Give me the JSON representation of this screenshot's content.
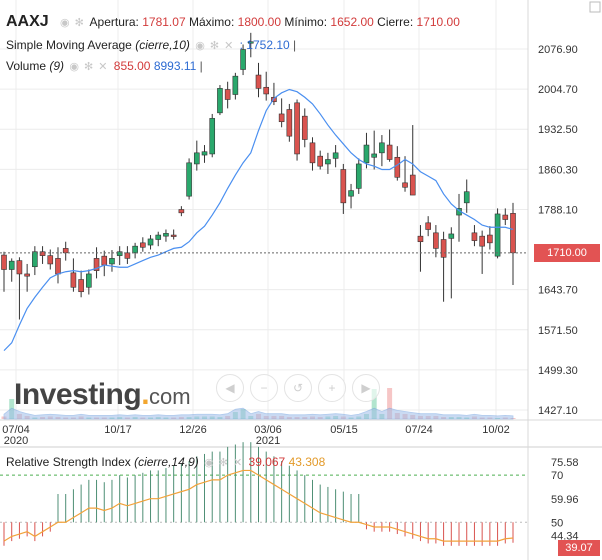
{
  "header": {
    "symbol": "AAXJ",
    "open_label": "Apertura:",
    "open_value": "1781.07",
    "high_label": "Máximo:",
    "high_value": "1800.00",
    "low_label": "Mínimo:",
    "low_value": "1652.00",
    "close_label": "Cierre:",
    "close_value": "1710.00"
  },
  "sma": {
    "label": "Simple Moving Average",
    "params": "(cierre,10)",
    "value": ": 1752.10"
  },
  "volume": {
    "label": "Volume",
    "params": "(9)",
    "value1": "855.00",
    "value2": "8993.11"
  },
  "rsi": {
    "label": "Relative Strength Index",
    "params": "(cierre,14,9)",
    "value1": "39.067",
    "value2": "43.308",
    "axis_labels": [
      "75.58",
      "70",
      "59.96",
      "50",
      "44.34",
      "39.07"
    ]
  },
  "price_axis_labels": [
    "2076.90",
    "2004.70",
    "1932.50",
    "1860.30",
    "1788.10",
    "1643.70",
    "1571.50",
    "1499.30",
    "1427.10"
  ],
  "current_price_label": "1710.00",
  "x_axis_labels": [
    "07/04",
    "10/17",
    "12/26",
    "03/06",
    "05/15",
    "07/24",
    "10/02"
  ],
  "x_axis_years": [
    "2020",
    "2021"
  ],
  "watermark": {
    "brand": "Investing",
    "suffix": "com"
  },
  "zoom_controls": [
    "◀",
    "−",
    "↺",
    "+",
    "▶"
  ],
  "colors": {
    "up": "#2aa86c",
    "down": "#d9534f",
    "sma": "#4a8ff0",
    "rsi_line": "#f2a23a",
    "rsi_hist_up": "#4d8e74",
    "rsi_hist_down": "#d9534f",
    "overbought": "#4caf50",
    "grid": "#ececec"
  },
  "chart_data": {
    "type": "candlestick",
    "ylim": [
      1427.1,
      2110
    ],
    "candles": [
      {
        "o": 1706,
        "h": 1712,
        "l": 1640,
        "c": 1680
      },
      {
        "o": 1680,
        "h": 1700,
        "l": 1658,
        "c": 1695
      },
      {
        "o": 1696,
        "h": 1702,
        "l": 1590,
        "c": 1672
      },
      {
        "o": 1672,
        "h": 1690,
        "l": 1640,
        "c": 1668
      },
      {
        "o": 1685,
        "h": 1722,
        "l": 1670,
        "c": 1712
      },
      {
        "o": 1712,
        "h": 1722,
        "l": 1690,
        "c": 1705
      },
      {
        "o": 1705,
        "h": 1716,
        "l": 1680,
        "c": 1690
      },
      {
        "o": 1700,
        "h": 1720,
        "l": 1655,
        "c": 1672
      },
      {
        "o": 1718,
        "h": 1730,
        "l": 1696,
        "c": 1710
      },
      {
        "o": 1674,
        "h": 1700,
        "l": 1640,
        "c": 1648
      },
      {
        "o": 1662,
        "h": 1678,
        "l": 1630,
        "c": 1640
      },
      {
        "o": 1648,
        "h": 1680,
        "l": 1635,
        "c": 1672
      },
      {
        "o": 1700,
        "h": 1720,
        "l": 1664,
        "c": 1678
      },
      {
        "o": 1704,
        "h": 1714,
        "l": 1668,
        "c": 1688
      },
      {
        "o": 1690,
        "h": 1715,
        "l": 1676,
        "c": 1700
      },
      {
        "o": 1705,
        "h": 1722,
        "l": 1688,
        "c": 1712
      },
      {
        "o": 1710,
        "h": 1722,
        "l": 1690,
        "c": 1700
      },
      {
        "o": 1710,
        "h": 1728,
        "l": 1700,
        "c": 1722
      },
      {
        "o": 1728,
        "h": 1738,
        "l": 1712,
        "c": 1720
      },
      {
        "o": 1724,
        "h": 1742,
        "l": 1716,
        "c": 1735
      },
      {
        "o": 1734,
        "h": 1748,
        "l": 1722,
        "c": 1742
      },
      {
        "o": 1740,
        "h": 1752,
        "l": 1730,
        "c": 1745
      },
      {
        "o": 1742,
        "h": 1752,
        "l": 1734,
        "c": 1740
      },
      {
        "o": 1788,
        "h": 1794,
        "l": 1776,
        "c": 1782
      },
      {
        "o": 1812,
        "h": 1880,
        "l": 1806,
        "c": 1872
      },
      {
        "o": 1870,
        "h": 1912,
        "l": 1858,
        "c": 1890
      },
      {
        "o": 1886,
        "h": 1904,
        "l": 1872,
        "c": 1892
      },
      {
        "o": 1888,
        "h": 1960,
        "l": 1882,
        "c": 1952
      },
      {
        "o": 1962,
        "h": 2012,
        "l": 1958,
        "c": 2006
      },
      {
        "o": 2004,
        "h": 2018,
        "l": 1970,
        "c": 1986
      },
      {
        "o": 1995,
        "h": 2034,
        "l": 1986,
        "c": 2028
      },
      {
        "o": 2040,
        "h": 2085,
        "l": 2030,
        "c": 2076
      },
      {
        "o": 2088,
        "h": 2106,
        "l": 2062,
        "c": 2090
      },
      {
        "o": 2030,
        "h": 2052,
        "l": 1990,
        "c": 2006
      },
      {
        "o": 2008,
        "h": 2036,
        "l": 1984,
        "c": 1996
      },
      {
        "o": 1990,
        "h": 2016,
        "l": 1976,
        "c": 1982
      },
      {
        "o": 1960,
        "h": 1988,
        "l": 1936,
        "c": 1946
      },
      {
        "o": 1968,
        "h": 1978,
        "l": 1910,
        "c": 1920
      },
      {
        "o": 1980,
        "h": 1986,
        "l": 1876,
        "c": 1888
      },
      {
        "o": 1956,
        "h": 1970,
        "l": 1900,
        "c": 1914
      },
      {
        "o": 1908,
        "h": 1918,
        "l": 1858,
        "c": 1872
      },
      {
        "o": 1884,
        "h": 1894,
        "l": 1860,
        "c": 1866
      },
      {
        "o": 1870,
        "h": 1890,
        "l": 1852,
        "c": 1878
      },
      {
        "o": 1880,
        "h": 1904,
        "l": 1864,
        "c": 1890
      },
      {
        "o": 1860,
        "h": 1870,
        "l": 1780,
        "c": 1800
      },
      {
        "o": 1812,
        "h": 1834,
        "l": 1790,
        "c": 1822
      },
      {
        "o": 1826,
        "h": 1880,
        "l": 1816,
        "c": 1870
      },
      {
        "o": 1872,
        "h": 1926,
        "l": 1862,
        "c": 1904
      },
      {
        "o": 1882,
        "h": 1930,
        "l": 1860,
        "c": 1888
      },
      {
        "o": 1890,
        "h": 1922,
        "l": 1866,
        "c": 1908
      },
      {
        "o": 1904,
        "h": 1932,
        "l": 1874,
        "c": 1878
      },
      {
        "o": 1882,
        "h": 1902,
        "l": 1840,
        "c": 1846
      },
      {
        "o": 1836,
        "h": 1884,
        "l": 1820,
        "c": 1828
      },
      {
        "o": 1850,
        "h": 1940,
        "l": 1814,
        "c": 1814
      },
      {
        "o": 1740,
        "h": 1760,
        "l": 1676,
        "c": 1730
      },
      {
        "o": 1764,
        "h": 1776,
        "l": 1740,
        "c": 1752
      },
      {
        "o": 1746,
        "h": 1760,
        "l": 1702,
        "c": 1718
      },
      {
        "o": 1734,
        "h": 1748,
        "l": 1622,
        "c": 1702
      },
      {
        "o": 1736,
        "h": 1756,
        "l": 1628,
        "c": 1744
      },
      {
        "o": 1778,
        "h": 1816,
        "l": 1730,
        "c": 1790
      },
      {
        "o": 1800,
        "h": 1842,
        "l": 1782,
        "c": 1820
      },
      {
        "o": 1746,
        "h": 1760,
        "l": 1722,
        "c": 1732
      },
      {
        "o": 1740,
        "h": 1750,
        "l": 1672,
        "c": 1722
      },
      {
        "o": 1742,
        "h": 1758,
        "l": 1716,
        "c": 1728
      },
      {
        "o": 1704,
        "h": 1790,
        "l": 1700,
        "c": 1780
      },
      {
        "o": 1778,
        "h": 1790,
        "l": 1760,
        "c": 1770
      },
      {
        "o": 1781.07,
        "h": 1800,
        "l": 1652,
        "c": 1710
      }
    ],
    "sma": [
      1534,
      1548,
      1580,
      1610,
      1630,
      1648,
      1665,
      1672,
      1676,
      1678,
      1676,
      1678,
      1682,
      1688,
      1686,
      1684,
      1684,
      1690,
      1696,
      1702,
      1706,
      1712,
      1718,
      1720,
      1730,
      1746,
      1758,
      1778,
      1800,
      1826,
      1850,
      1872,
      1890,
      1930,
      1966,
      1988,
      1998,
      2004,
      2000,
      1990,
      1978,
      1960,
      1940,
      1922,
      1906,
      1890,
      1878,
      1870,
      1866,
      1860,
      1860,
      1868,
      1878,
      1870,
      1856,
      1848,
      1840,
      1816,
      1798,
      1786,
      1778,
      1770,
      1760,
      1756,
      1756,
      1756,
      1752.1
    ],
    "volume": [
      5,
      40,
      10,
      6,
      3,
      4,
      5,
      4,
      3,
      3,
      5,
      3,
      3,
      3,
      3,
      4,
      3,
      4,
      3,
      3,
      4,
      3,
      3,
      4,
      4,
      5,
      5,
      5,
      4,
      6,
      14,
      20,
      6,
      10,
      6,
      6,
      6,
      4,
      4,
      4,
      5,
      4,
      5,
      6,
      5,
      3,
      5,
      10,
      60,
      10,
      62,
      12,
      10,
      8,
      6,
      6,
      6,
      4,
      4,
      4,
      3,
      5,
      3,
      3,
      2,
      3,
      2
    ],
    "rsi": [
      42,
      44,
      45,
      46,
      44,
      46,
      48,
      50,
      50,
      52,
      54,
      56,
      56,
      55,
      56,
      58,
      57,
      58,
      59,
      60,
      60,
      61,
      62,
      63,
      64,
      66,
      67,
      68,
      68,
      70,
      71,
      72,
      72,
      70,
      68,
      66,
      64,
      62,
      60,
      58,
      56,
      54,
      53,
      52,
      51,
      50,
      50,
      49,
      48,
      48,
      48,
      47,
      46,
      45,
      44,
      43,
      43,
      42,
      42,
      42,
      42,
      42,
      42,
      42,
      42,
      43,
      43.308
    ]
  }
}
